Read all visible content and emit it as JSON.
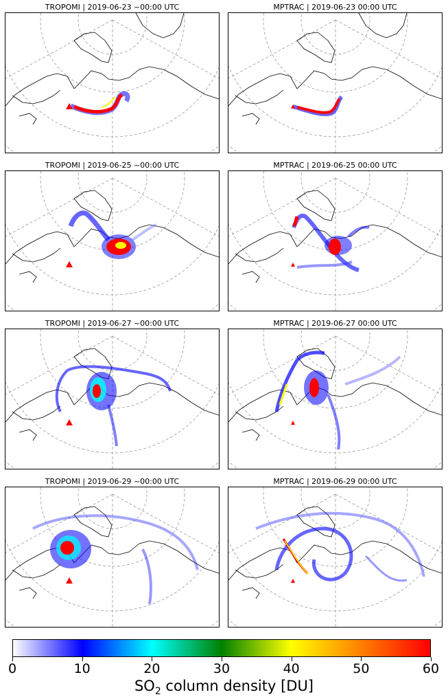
{
  "panels": [
    {
      "title": "TROPOMI | 2019-06-23 ~00:00 UTC"
    },
    {
      "title": "MPTRAC | 2019-06-23 00:00 UTC"
    },
    {
      "title": "TROPOMI | 2019-06-25 ~00:00 UTC"
    },
    {
      "title": "MPTRAC | 2019-06-25 00:00 UTC"
    },
    {
      "title": "TROPOMI | 2019-06-27 ~00:00 UTC"
    },
    {
      "title": "MPTRAC | 2019-06-27 00:00 UTC"
    },
    {
      "title": "TROPOMI | 2019-06-29 ~00:00 UTC"
    },
    {
      "title": "MPTRAC | 2019-06-29 00:00 UTC"
    }
  ],
  "colorbar": {
    "label_prefix": "SO",
    "label_sub": "2",
    "label_suffix": " column density [DU]",
    "min": 0,
    "max": 60,
    "ticks": [
      "0",
      "10",
      "20",
      "30",
      "40",
      "50",
      "60"
    ],
    "colors": [
      "#ffffff",
      "#0000ff",
      "#00ffff",
      "#008000",
      "#ffff00",
      "#ff8000",
      "#ff0000"
    ]
  },
  "marker": {
    "type": "volcano-triangle",
    "color": "#ff0000"
  }
}
